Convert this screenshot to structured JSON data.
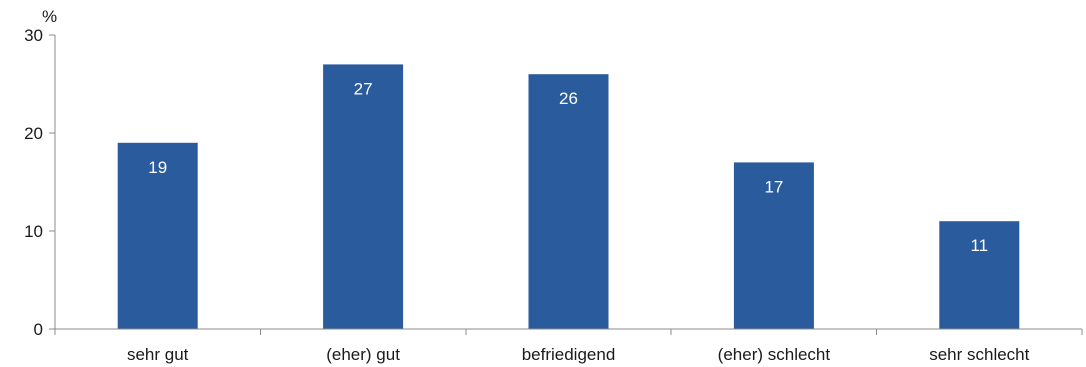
{
  "chart_data": {
    "type": "bar",
    "categories": [
      "sehr gut",
      "(eher) gut",
      "befriedigend",
      "(eher) schlecht",
      "sehr schlecht"
    ],
    "values": [
      19,
      27,
      26,
      17,
      11
    ],
    "data_labels": [
      "19",
      "27",
      "26",
      "17",
      "11"
    ],
    "title": "",
    "xlabel": "",
    "ylabel": "",
    "y_unit_label": "%",
    "ylim": [
      0,
      30
    ],
    "yticks": [
      0,
      10,
      20,
      30
    ],
    "grid": false,
    "legend": "none",
    "colors": {
      "bar": "#2a5b9c",
      "data_label": "#ffffff",
      "axis": "#8c8c8c"
    }
  }
}
